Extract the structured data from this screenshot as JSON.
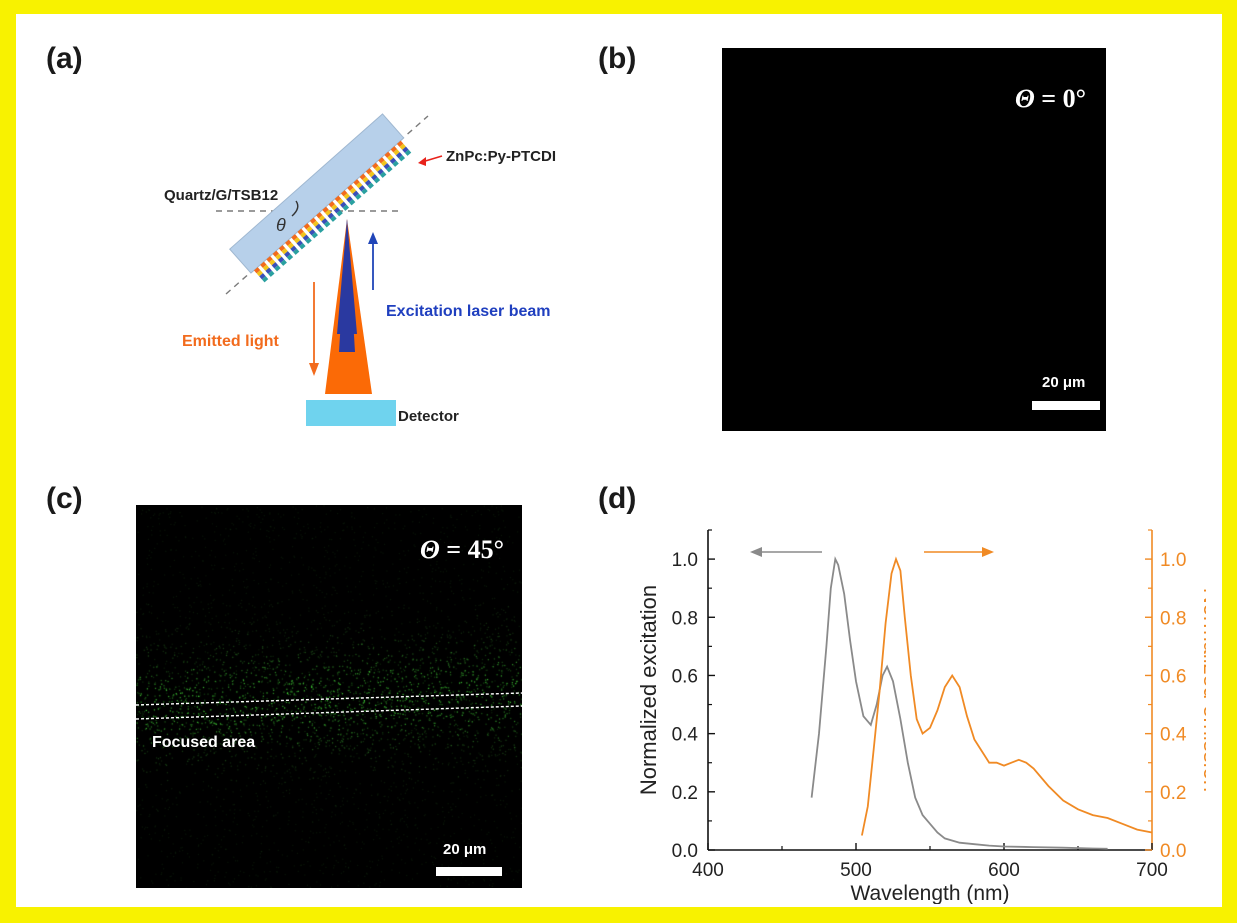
{
  "panels": {
    "a": {
      "label": "(a)",
      "quartz_label": "Quartz/G/TSB12",
      "film_label": "ZnPc:Py-PTCDI",
      "theta_symbol": "θ",
      "excitation_label": "Excitation laser beam",
      "emitted_label": "Emitted light",
      "detector_label": "Detector",
      "colors": {
        "quartz": "#b7d0ea",
        "detector": "#6fd3ee",
        "cone_emit": "#fb6a06",
        "cone_excite": "#2a39a0",
        "arrow_emit": "#f26b1d",
        "arrow_excite": "#2045b8",
        "excite_text": "#1f3fbf",
        "emit_text": "#f26b1d"
      }
    },
    "b": {
      "label": "(b)",
      "theta_symbol": "Θ",
      "theta_value": " = 0°",
      "scale": "20 μm"
    },
    "c": {
      "label": "(c)",
      "theta_symbol": "Θ",
      "theta_value": " = 45°",
      "focused_label": "Focused area",
      "scale": "20 μm",
      "glow_color": "#3fae3a"
    },
    "d": {
      "label": "(d)"
    }
  },
  "chart_data": {
    "type": "line",
    "xlabel": "Wavelength (nm)",
    "ylabel_left": "Normalized excitation",
    "ylabel_right": "Normalized emission",
    "xlim": [
      400,
      700
    ],
    "ylim_left": [
      0.0,
      1.1
    ],
    "ylim_right": [
      0.0,
      1.1
    ],
    "x_ticks": [
      "400",
      "500",
      "600",
      "700"
    ],
    "y_ticks_left": [
      "0.0",
      "0.2",
      "0.4",
      "0.6",
      "0.8",
      "1.0"
    ],
    "y_ticks_right": [
      "0.0",
      "0.2",
      "0.4",
      "0.6",
      "0.8",
      "1.0"
    ],
    "series": [
      {
        "axis": "left",
        "color": "#8a8a8a",
        "x": [
          470,
          475,
          480,
          483,
          486,
          488,
          492,
          496,
          500,
          505,
          510,
          514,
          518,
          521,
          525,
          530,
          535,
          540,
          545,
          550,
          555,
          560,
          570,
          580,
          590,
          600,
          620,
          640,
          660,
          670
        ],
        "y": [
          0.18,
          0.4,
          0.7,
          0.9,
          1.0,
          0.98,
          0.88,
          0.72,
          0.58,
          0.46,
          0.43,
          0.5,
          0.6,
          0.63,
          0.58,
          0.45,
          0.3,
          0.18,
          0.12,
          0.09,
          0.06,
          0.04,
          0.025,
          0.02,
          0.015,
          0.012,
          0.01,
          0.008,
          0.005,
          0.004
        ]
      },
      {
        "axis": "right",
        "color": "#f08a24",
        "x": [
          504,
          508,
          512,
          516,
          520,
          524,
          527,
          530,
          533,
          537,
          541,
          545,
          550,
          555,
          560,
          565,
          570,
          575,
          580,
          585,
          590,
          595,
          600,
          605,
          610,
          615,
          620,
          630,
          640,
          650,
          660,
          670,
          680,
          690,
          700
        ],
        "y": [
          0.05,
          0.15,
          0.35,
          0.55,
          0.78,
          0.95,
          1.0,
          0.96,
          0.8,
          0.6,
          0.45,
          0.4,
          0.42,
          0.48,
          0.56,
          0.6,
          0.56,
          0.46,
          0.38,
          0.34,
          0.3,
          0.3,
          0.29,
          0.3,
          0.31,
          0.3,
          0.28,
          0.22,
          0.17,
          0.14,
          0.12,
          0.11,
          0.09,
          0.07,
          0.06
        ]
      }
    ]
  }
}
